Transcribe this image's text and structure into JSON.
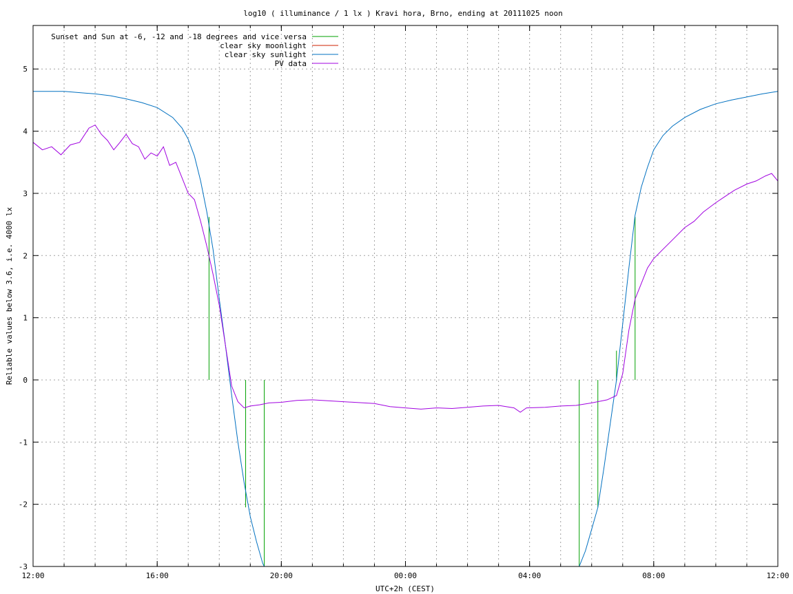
{
  "chart_data": {
    "type": "line",
    "title": "log10 ( illuminance / 1 lx ) Kravi hora, Brno, ending at 20111025 noon",
    "xlabel": "UTC+2h (CEST)",
    "ylabel": "Reliable values below 3.6, i.e. 4000 lx",
    "x_unit": "hours of day (12:00 to next 12:00)",
    "xlim": [
      12,
      36
    ],
    "ylim": [
      -3,
      5.7
    ],
    "grid": true,
    "legend_position": "top-left",
    "x_ticks": [
      {
        "value": 12,
        "label": "12:00"
      },
      {
        "value": 16,
        "label": "16:00"
      },
      {
        "value": 20,
        "label": "20:00"
      },
      {
        "value": 24,
        "label": "00:00"
      },
      {
        "value": 28,
        "label": "04:00"
      },
      {
        "value": 32,
        "label": "08:00"
      },
      {
        "value": 36,
        "label": "12:00"
      }
    ],
    "y_ticks": [
      {
        "value": -3,
        "label": "-3"
      },
      {
        "value": -2,
        "label": "-2"
      },
      {
        "value": -1,
        "label": "-1"
      },
      {
        "value": 0,
        "label": "0"
      },
      {
        "value": 1,
        "label": "1"
      },
      {
        "value": 2,
        "label": "2"
      },
      {
        "value": 3,
        "label": "3"
      },
      {
        "value": 4,
        "label": "4"
      },
      {
        "value": 5,
        "label": "5"
      }
    ],
    "series": [
      {
        "name": "Sunset and Sun at -6, -12 and -18 degrees and vice versa",
        "color": "#00a000",
        "kind": "impulses",
        "points": [
          {
            "x": 17.67,
            "y": 2.62
          },
          {
            "x": 18.85,
            "y": -2.05
          },
          {
            "x": 19.45,
            "y": -3.0
          },
          {
            "x": 29.6,
            "y": -3.0
          },
          {
            "x": 30.2,
            "y": -2.05
          },
          {
            "x": 30.8,
            "y": 0.47
          },
          {
            "x": 31.4,
            "y": 2.62
          }
        ]
      },
      {
        "name": "clear sky moonlight",
        "color": "#cc2200",
        "kind": "line",
        "points": []
      },
      {
        "name": "clear sky sunlight",
        "color": "#0070c0",
        "kind": "line",
        "points": [
          {
            "x": 12.0,
            "y": 4.64
          },
          {
            "x": 13.0,
            "y": 4.64
          },
          {
            "x": 14.0,
            "y": 4.6
          },
          {
            "x": 14.5,
            "y": 4.57
          },
          {
            "x": 15.0,
            "y": 4.52
          },
          {
            "x": 15.5,
            "y": 4.46
          },
          {
            "x": 16.0,
            "y": 4.38
          },
          {
            "x": 16.5,
            "y": 4.22
          },
          {
            "x": 16.8,
            "y": 4.05
          },
          {
            "x": 17.0,
            "y": 3.87
          },
          {
            "x": 17.2,
            "y": 3.6
          },
          {
            "x": 17.4,
            "y": 3.2
          },
          {
            "x": 17.6,
            "y": 2.7
          },
          {
            "x": 17.8,
            "y": 2.1
          },
          {
            "x": 18.0,
            "y": 1.3
          },
          {
            "x": 18.2,
            "y": 0.55
          },
          {
            "x": 18.4,
            "y": -0.25
          },
          {
            "x": 18.6,
            "y": -1.0
          },
          {
            "x": 18.8,
            "y": -1.65
          },
          {
            "x": 19.0,
            "y": -2.2
          },
          {
            "x": 19.2,
            "y": -2.6
          },
          {
            "x": 19.4,
            "y": -2.95
          },
          {
            "x": 19.45,
            "y": -3.0
          },
          {
            "x": 29.6,
            "y": -3.0
          },
          {
            "x": 29.8,
            "y": -2.75
          },
          {
            "x": 30.0,
            "y": -2.4
          },
          {
            "x": 30.2,
            "y": -2.05
          },
          {
            "x": 30.4,
            "y": -1.4
          },
          {
            "x": 30.6,
            "y": -0.7
          },
          {
            "x": 30.8,
            "y": 0.0
          },
          {
            "x": 31.0,
            "y": 0.9
          },
          {
            "x": 31.2,
            "y": 1.8
          },
          {
            "x": 31.4,
            "y": 2.65
          },
          {
            "x": 31.6,
            "y": 3.1
          },
          {
            "x": 31.8,
            "y": 3.42
          },
          {
            "x": 32.0,
            "y": 3.7
          },
          {
            "x": 32.3,
            "y": 3.93
          },
          {
            "x": 32.6,
            "y": 4.08
          },
          {
            "x": 33.0,
            "y": 4.22
          },
          {
            "x": 33.5,
            "y": 4.35
          },
          {
            "x": 34.0,
            "y": 4.44
          },
          {
            "x": 34.5,
            "y": 4.5
          },
          {
            "x": 35.0,
            "y": 4.55
          },
          {
            "x": 35.5,
            "y": 4.6
          },
          {
            "x": 36.0,
            "y": 4.64
          }
        ]
      },
      {
        "name": "PV data",
        "color": "#a000e0",
        "kind": "line",
        "points": [
          {
            "x": 12.0,
            "y": 3.82
          },
          {
            "x": 12.3,
            "y": 3.7
          },
          {
            "x": 12.6,
            "y": 3.75
          },
          {
            "x": 12.9,
            "y": 3.62
          },
          {
            "x": 13.2,
            "y": 3.78
          },
          {
            "x": 13.5,
            "y": 3.82
          },
          {
            "x": 13.8,
            "y": 4.05
          },
          {
            "x": 14.0,
            "y": 4.1
          },
          {
            "x": 14.2,
            "y": 3.95
          },
          {
            "x": 14.4,
            "y": 3.85
          },
          {
            "x": 14.6,
            "y": 3.7
          },
          {
            "x": 14.8,
            "y": 3.82
          },
          {
            "x": 15.0,
            "y": 3.95
          },
          {
            "x": 15.2,
            "y": 3.8
          },
          {
            "x": 15.4,
            "y": 3.75
          },
          {
            "x": 15.6,
            "y": 3.55
          },
          {
            "x": 15.8,
            "y": 3.65
          },
          {
            "x": 16.0,
            "y": 3.6
          },
          {
            "x": 16.2,
            "y": 3.75
          },
          {
            "x": 16.4,
            "y": 3.45
          },
          {
            "x": 16.6,
            "y": 3.5
          },
          {
            "x": 16.8,
            "y": 3.25
          },
          {
            "x": 17.0,
            "y": 3.0
          },
          {
            "x": 17.2,
            "y": 2.9
          },
          {
            "x": 17.4,
            "y": 2.55
          },
          {
            "x": 17.6,
            "y": 2.15
          },
          {
            "x": 17.8,
            "y": 1.7
          },
          {
            "x": 18.0,
            "y": 1.2
          },
          {
            "x": 18.2,
            "y": 0.55
          },
          {
            "x": 18.4,
            "y": -0.1
          },
          {
            "x": 18.6,
            "y": -0.35
          },
          {
            "x": 18.8,
            "y": -0.45
          },
          {
            "x": 19.0,
            "y": -0.42
          },
          {
            "x": 19.3,
            "y": -0.4
          },
          {
            "x": 19.6,
            "y": -0.37
          },
          {
            "x": 20.0,
            "y": -0.36
          },
          {
            "x": 20.5,
            "y": -0.33
          },
          {
            "x": 21.0,
            "y": -0.32
          },
          {
            "x": 22.0,
            "y": -0.35
          },
          {
            "x": 23.0,
            "y": -0.38
          },
          {
            "x": 23.5,
            "y": -0.43
          },
          {
            "x": 24.0,
            "y": -0.45
          },
          {
            "x": 24.5,
            "y": -0.47
          },
          {
            "x": 25.0,
            "y": -0.45
          },
          {
            "x": 25.5,
            "y": -0.46
          },
          {
            "x": 26.0,
            "y": -0.44
          },
          {
            "x": 26.5,
            "y": -0.42
          },
          {
            "x": 27.0,
            "y": -0.41
          },
          {
            "x": 27.5,
            "y": -0.45
          },
          {
            "x": 27.7,
            "y": -0.52
          },
          {
            "x": 27.9,
            "y": -0.45
          },
          {
            "x": 28.5,
            "y": -0.44
          },
          {
            "x": 29.0,
            "y": -0.42
          },
          {
            "x": 29.5,
            "y": -0.41
          },
          {
            "x": 30.0,
            "y": -0.37
          },
          {
            "x": 30.5,
            "y": -0.32
          },
          {
            "x": 30.8,
            "y": -0.25
          },
          {
            "x": 31.0,
            "y": 0.1
          },
          {
            "x": 31.2,
            "y": 0.8
          },
          {
            "x": 31.4,
            "y": 1.3
          },
          {
            "x": 31.6,
            "y": 1.55
          },
          {
            "x": 31.8,
            "y": 1.8
          },
          {
            "x": 32.0,
            "y": 1.95
          },
          {
            "x": 32.3,
            "y": 2.1
          },
          {
            "x": 32.6,
            "y": 2.25
          },
          {
            "x": 33.0,
            "y": 2.45
          },
          {
            "x": 33.3,
            "y": 2.55
          },
          {
            "x": 33.6,
            "y": 2.7
          },
          {
            "x": 34.0,
            "y": 2.85
          },
          {
            "x": 34.3,
            "y": 2.95
          },
          {
            "x": 34.6,
            "y": 3.05
          },
          {
            "x": 35.0,
            "y": 3.15
          },
          {
            "x": 35.3,
            "y": 3.2
          },
          {
            "x": 35.6,
            "y": 3.28
          },
          {
            "x": 35.8,
            "y": 3.32
          },
          {
            "x": 36.0,
            "y": 3.2
          }
        ]
      }
    ]
  }
}
